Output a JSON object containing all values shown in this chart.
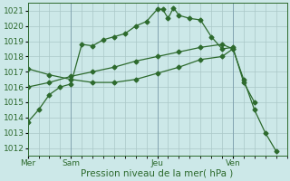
{
  "background_color": "#cce8e8",
  "plot_bg_color": "#cce8e8",
  "line_color": "#2d6a2d",
  "grid_color": "#aac8c8",
  "vline_color": "#7799aa",
  "ylim": [
    1011.5,
    1021.5
  ],
  "yticks": [
    1012,
    1013,
    1014,
    1015,
    1016,
    1017,
    1018,
    1019,
    1020,
    1021
  ],
  "xlabel": "Pression niveau de la mer( hPa )",
  "xlabel_fontsize": 7.5,
  "tick_fontsize": 6.5,
  "day_labels": [
    "Mer",
    "Sam",
    "Jeu",
    "Ven"
  ],
  "day_positions": [
    0,
    4,
    12,
    19
  ],
  "vline_positions": [
    0,
    4,
    12,
    19
  ],
  "xlim": [
    0,
    24
  ],
  "line1_x": [
    0,
    1,
    2,
    3,
    4,
    5,
    6,
    7,
    8,
    9,
    10,
    11,
    12,
    12.5,
    13,
    13.5,
    14,
    15,
    16,
    17,
    18,
    19,
    20,
    21
  ],
  "line1_y": [
    1013.7,
    1014.5,
    1015.5,
    1016.0,
    1016.2,
    1018.8,
    1018.7,
    1019.1,
    1019.3,
    1019.5,
    1020.0,
    1020.3,
    1021.1,
    1021.1,
    1020.5,
    1021.2,
    1020.7,
    1020.5,
    1020.4,
    1019.3,
    1018.5,
    1018.6,
    1016.3,
    1015.0
  ],
  "line2_x": [
    0,
    2,
    4,
    6,
    8,
    10,
    12,
    14,
    16,
    18,
    19,
    20,
    21,
    22,
    23
  ],
  "line2_y": [
    1016.0,
    1016.3,
    1016.7,
    1017.0,
    1017.3,
    1017.7,
    1018.0,
    1018.3,
    1018.6,
    1018.8,
    1018.5,
    1016.5,
    1014.5,
    1013.0,
    1011.8
  ],
  "line3_x": [
    0,
    2,
    4,
    6,
    8,
    10,
    12,
    14,
    16,
    18,
    19
  ],
  "line3_y": [
    1017.2,
    1016.8,
    1016.5,
    1016.3,
    1016.3,
    1016.5,
    1016.9,
    1017.3,
    1017.8,
    1018.0,
    1018.5
  ]
}
